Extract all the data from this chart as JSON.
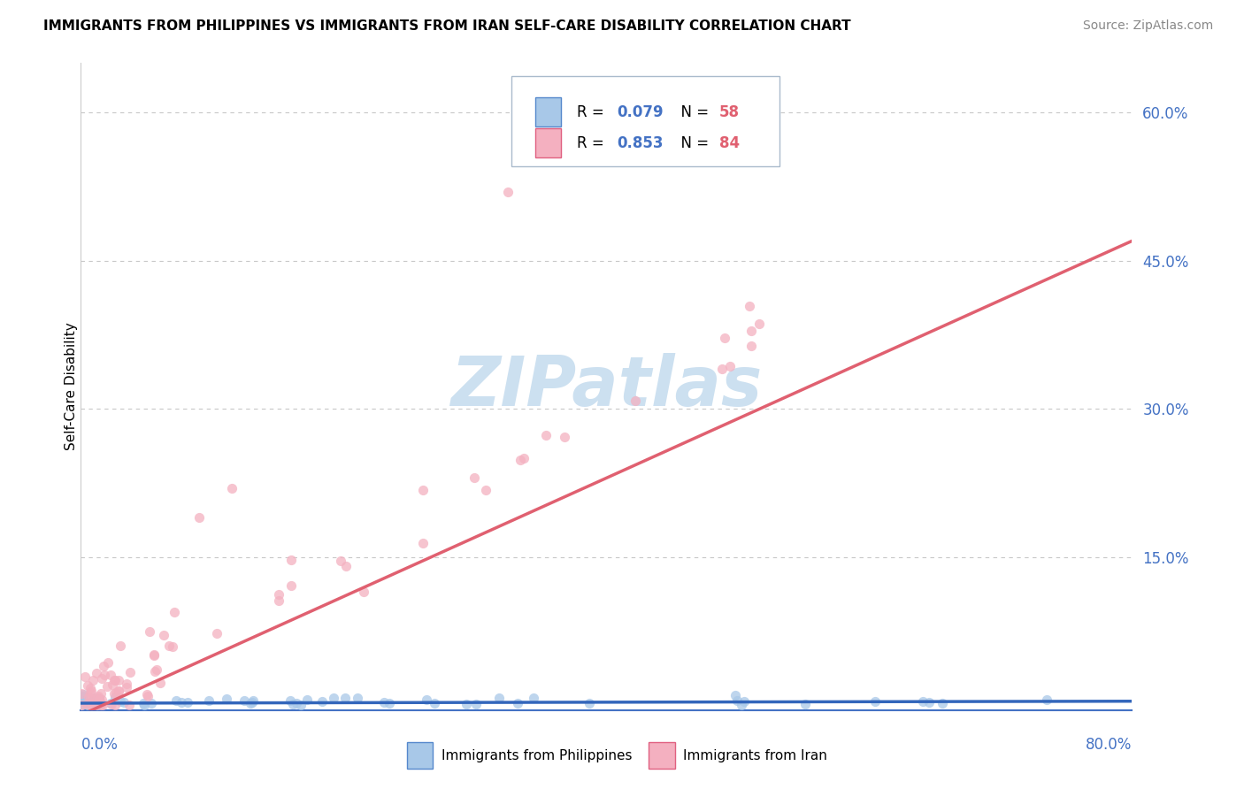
{
  "title": "IMMIGRANTS FROM PHILIPPINES VS IMMIGRANTS FROM IRAN SELF-CARE DISABILITY CORRELATION CHART",
  "source": "Source: ZipAtlas.com",
  "ylabel": "Self-Care Disability",
  "xlim": [
    0.0,
    0.8
  ],
  "ylim": [
    -0.005,
    0.65
  ],
  "yticks": [
    0.15,
    0.3,
    0.45,
    0.6
  ],
  "ytick_labels": [
    "15.0%",
    "30.0%",
    "45.0%",
    "60.0%"
  ],
  "axis_color": "#4472c4",
  "grid_color": "#c8c8c8",
  "watermark_text": "ZIPatlas",
  "watermark_color": "#cce0f0",
  "series": [
    {
      "name": "Immigrants from Philippines",
      "R": 0.079,
      "N": 58,
      "color_fill": "#a8c8e8",
      "color_edge": "#5588cc",
      "line_color": "#3366bb"
    },
    {
      "name": "Immigrants from Iran",
      "R": 0.853,
      "N": 84,
      "color_fill": "#f4b0c0",
      "color_edge": "#e06080",
      "line_color": "#e06070"
    }
  ],
  "legend_box_color": "#8ab4d4",
  "title_fontsize": 11,
  "source_fontsize": 10,
  "tick_label_color": "#4472c4",
  "tick_label_fontsize": 12
}
